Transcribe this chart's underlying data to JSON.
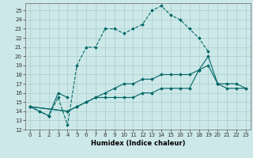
{
  "xlabel": "Humidex (Indice chaleur)",
  "bg_color": "#cde8e8",
  "grid_color": "#aacccc",
  "line_color": "#006666",
  "xlim": [
    -0.5,
    23.5
  ],
  "ylim": [
    12,
    25.8
  ],
  "yticks": [
    12,
    13,
    14,
    15,
    16,
    17,
    18,
    19,
    20,
    21,
    22,
    23,
    24,
    25
  ],
  "xticks": [
    0,
    1,
    2,
    3,
    4,
    5,
    6,
    7,
    8,
    9,
    10,
    11,
    12,
    13,
    14,
    15,
    16,
    17,
    18,
    19,
    20,
    21,
    22,
    23
  ],
  "series": [
    {
      "x": [
        0,
        1,
        2,
        3,
        4,
        5,
        6,
        7,
        8,
        9,
        10,
        11,
        12,
        13,
        14,
        15,
        16,
        17,
        18,
        19
      ],
      "y": [
        14.5,
        14,
        13.5,
        15.5,
        12.5,
        19,
        21,
        21,
        23,
        23,
        22.5,
        23,
        23.5,
        25,
        25.5,
        24.5,
        24,
        23,
        22,
        20.5
      ],
      "marker": "D",
      "linestyle": "--"
    },
    {
      "x": [
        0,
        1,
        2,
        3,
        4
      ],
      "y": [
        14.5,
        14,
        13.5,
        16,
        15.5
      ],
      "marker": "D",
      "linestyle": "-"
    },
    {
      "x": [
        0,
        4,
        5,
        6,
        7,
        8,
        9,
        10,
        11,
        12,
        13,
        14,
        15,
        16,
        17,
        18,
        19,
        20,
        21,
        22,
        23
      ],
      "y": [
        14.5,
        14,
        14.5,
        15,
        15.5,
        15.5,
        15.5,
        15.5,
        15.5,
        16,
        16,
        16.5,
        16.5,
        16.5,
        16.5,
        18.5,
        19,
        17,
        16.5,
        16.5,
        16.5
      ],
      "marker": "D",
      "linestyle": "-"
    },
    {
      "x": [
        0,
        4,
        5,
        6,
        7,
        8,
        9,
        10,
        11,
        12,
        13,
        14,
        15,
        16,
        17,
        18,
        19,
        20,
        21,
        22,
        23
      ],
      "y": [
        14.5,
        14,
        14.5,
        15,
        15.5,
        16,
        16.5,
        17,
        17,
        17.5,
        17.5,
        18,
        18,
        18,
        18,
        18.5,
        20,
        17,
        17,
        17,
        16.5
      ],
      "marker": "D",
      "linestyle": "-"
    }
  ]
}
